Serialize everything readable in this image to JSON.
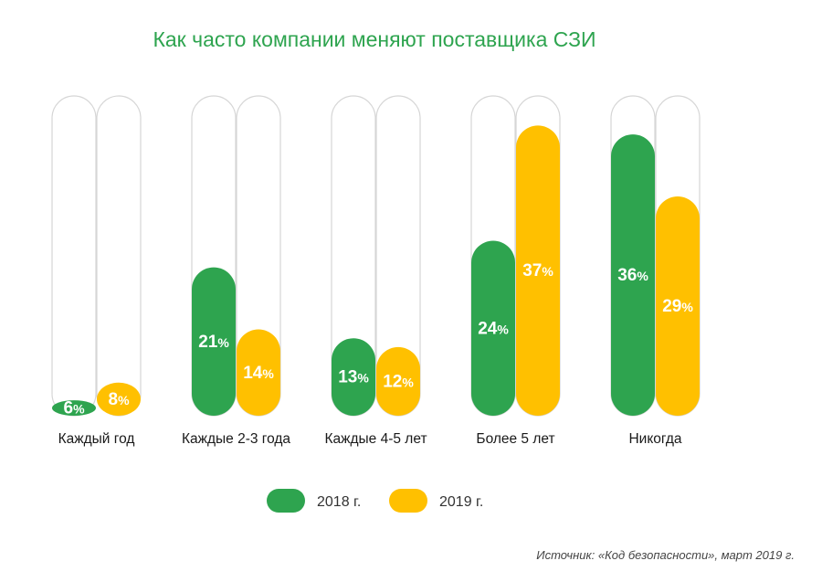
{
  "chart_data": {
    "type": "bar",
    "title": "Как часто компании меняют поставщика СЗИ",
    "categories": [
      "Каждый год",
      "Каждые 2-3 года",
      "Каждые 4-5 лет",
      "Более 5 лет",
      "Никогда"
    ],
    "series": [
      {
        "name": "2018 г.",
        "values": [
          6,
          21,
          13,
          24,
          36
        ],
        "color": "#2ea44f"
      },
      {
        "name": "2019 г.",
        "values": [
          8,
          14,
          12,
          37,
          29
        ],
        "color": "#ffc000"
      }
    ],
    "value_suffix": "%",
    "ylim": [
      0,
      40
    ],
    "grid": false,
    "legend_position": "bottom"
  },
  "source": "Источник: «Код безопасности», март 2019 г."
}
